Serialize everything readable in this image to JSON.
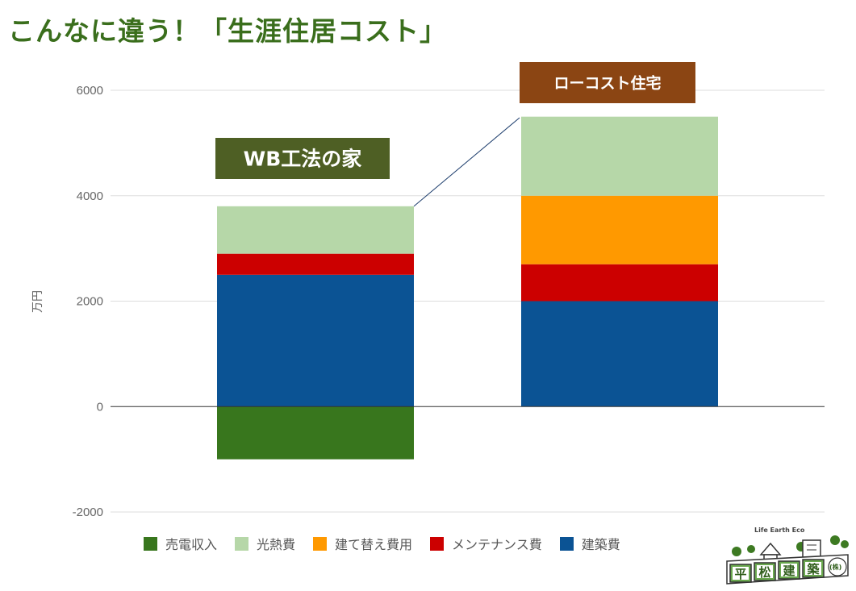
{
  "page": {
    "title": "こんなに違う！「生涯住居コスト」"
  },
  "chart_data": {
    "type": "bar",
    "stacked": true,
    "categories": [
      "WB工法の家",
      "ローコスト住宅"
    ],
    "series": [
      {
        "name": "売電収入",
        "values": [
          -1000,
          0
        ],
        "color": "#38761d"
      },
      {
        "name": "光熱費",
        "values": [
          900,
          1500
        ],
        "color": "#b6d7a8"
      },
      {
        "name": "建て替え費用",
        "values": [
          0,
          1300
        ],
        "color": "#ff9900"
      },
      {
        "name": "メンテナンス費",
        "values": [
          400,
          700
        ],
        "color": "#cc0000"
      },
      {
        "name": "建築費",
        "values": [
          2500,
          2000
        ],
        "color": "#0b5394"
      }
    ],
    "stack_order_bottom_to_top": [
      "建築費",
      "メンテナンス費",
      "建て替え費用",
      "光熱費"
    ],
    "ylabel": "万円",
    "ylim": [
      -2000,
      6000
    ],
    "yticks": [
      "-2000",
      "0",
      "2000",
      "4000",
      "6000"
    ],
    "grid": true,
    "legend_position": "bottom",
    "annotations": [
      {
        "text": "WB工法の家",
        "color": "#4e5f24"
      },
      {
        "text": "ローコスト住宅",
        "color": "#8b4513"
      }
    ]
  },
  "logo": {
    "caption": "Life Earth Eco",
    "characters": [
      "平",
      "松",
      "建",
      "築"
    ],
    "suffix": "(株)"
  }
}
